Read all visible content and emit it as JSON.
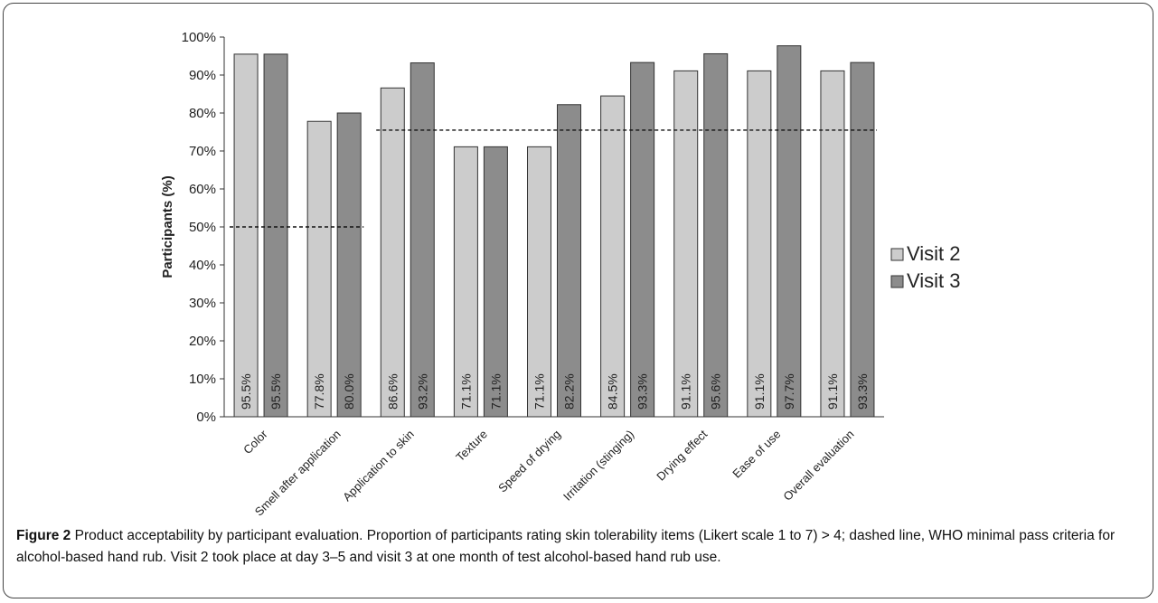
{
  "chart_data": {
    "type": "bar",
    "categories": [
      "Color",
      "Smell after application",
      "Application to skin",
      "Texture",
      "Speed of drying",
      "Irritation (stinging)",
      "Drying effect",
      "Ease of use",
      "Overall evaluation"
    ],
    "series": [
      {
        "name": "Visit 2",
        "color": "#cccccc",
        "values": [
          95.5,
          77.8,
          86.6,
          71.1,
          71.1,
          84.5,
          91.1,
          91.1,
          91.1
        ],
        "labels": [
          "95.5%",
          "77.8%",
          "86.6%",
          "71.1%",
          "71.1%",
          "84.5%",
          "91.1%",
          "91.1%",
          "91.1%"
        ]
      },
      {
        "name": "Visit 3",
        "color": "#8c8c8c",
        "values": [
          95.5,
          80.0,
          93.2,
          71.1,
          82.2,
          93.3,
          95.6,
          97.7,
          93.3
        ],
        "labels": [
          "95.5%",
          "80.0%",
          "93.2%",
          "71.1%",
          "82.2%",
          "93.3%",
          "95.6%",
          "97.7%",
          "93.3%"
        ]
      }
    ],
    "ylabel": "Participants (%)",
    "ylim": [
      0,
      100
    ],
    "yticks": [
      "0%",
      "10%",
      "20%",
      "30%",
      "40%",
      "50%",
      "60%",
      "70%",
      "80%",
      "90%",
      "100%"
    ],
    "thresholds": [
      {
        "value": 50,
        "from_category": 0,
        "to_category": 1
      },
      {
        "value": 75.5,
        "from_category": 2,
        "to_category": 8
      }
    ],
    "legend_position": "right",
    "grid": false
  },
  "caption": {
    "label": "Figure 2",
    "text": " Product acceptability by participant evaluation. Proportion of participants rating skin tolerability items (Likert scale 1 to 7) > 4; dashed line, WHO minimal pass criteria for alcohol-based hand rub. Visit 2 took place at day 3–5 and visit 3 at one month of test alcohol-based hand rub use."
  }
}
